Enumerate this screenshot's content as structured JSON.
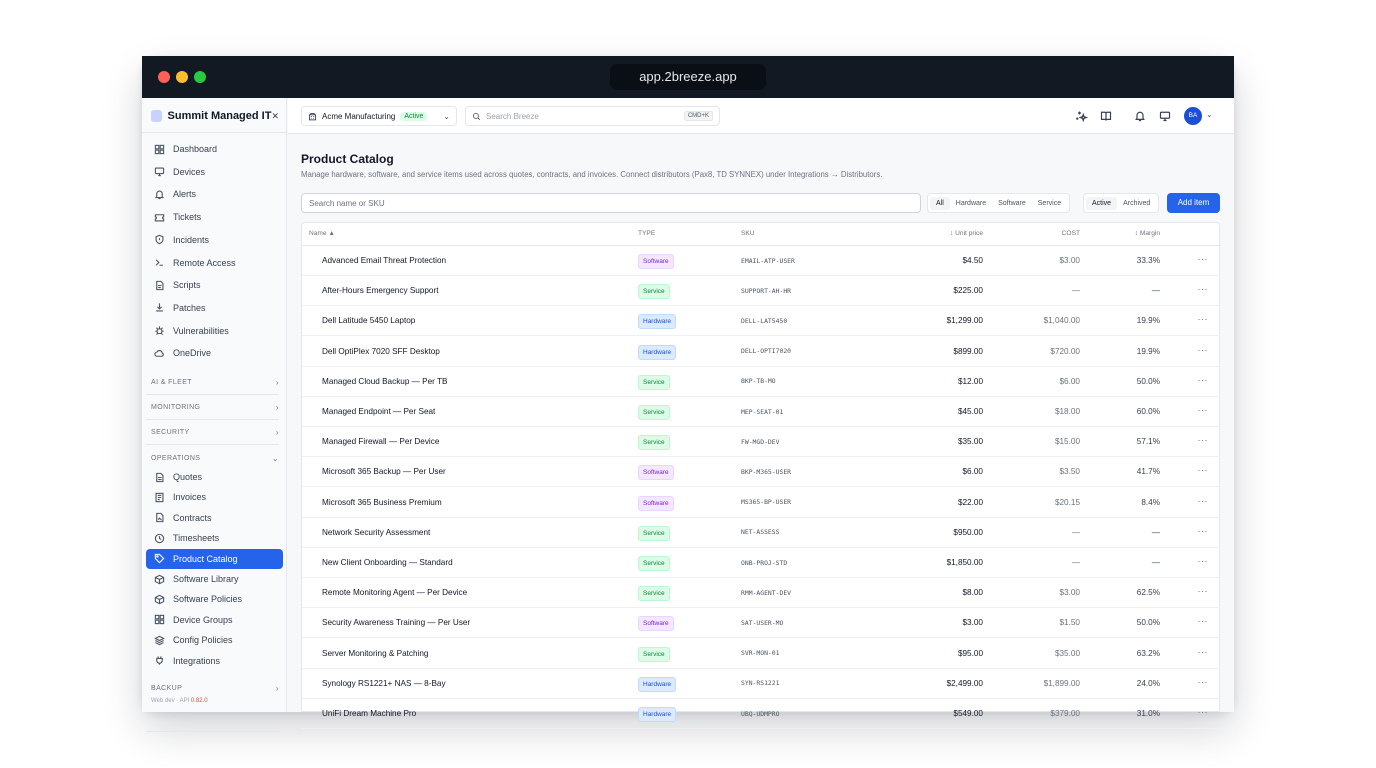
{
  "browser": {
    "url": "app.2breeze.app"
  },
  "sidebar": {
    "org_name": "Summit Managed IT",
    "items": [
      {
        "label": "Dashboard",
        "icon": "dashboard-icon"
      },
      {
        "label": "Devices",
        "icon": "monitor-icon"
      },
      {
        "label": "Alerts",
        "icon": "bell-icon"
      },
      {
        "label": "Tickets",
        "icon": "ticket-icon"
      },
      {
        "label": "Incidents",
        "icon": "shield-icon"
      },
      {
        "label": "Remote Access",
        "icon": "terminal-icon"
      },
      {
        "label": "Scripts",
        "icon": "script-icon"
      },
      {
        "label": "Patches",
        "icon": "download-icon"
      },
      {
        "label": "Vulnerabilities",
        "icon": "bug-icon"
      },
      {
        "label": "OneDrive",
        "icon": "cloud-icon"
      }
    ],
    "sections": {
      "ai_fleet": "AI & FLEET",
      "monitoring": "MONITORING",
      "security": "SECURITY",
      "operations": "OPERATIONS",
      "backup": "BACKUP"
    },
    "ops_items": [
      {
        "label": "Quotes",
        "icon": "document-icon"
      },
      {
        "label": "Invoices",
        "icon": "invoice-icon"
      },
      {
        "label": "Contracts",
        "icon": "contract-icon"
      },
      {
        "label": "Timesheets",
        "icon": "clock-icon"
      },
      {
        "label": "Product Catalog",
        "icon": "tag-icon",
        "active": true
      },
      {
        "label": "Software Library",
        "icon": "package-icon"
      },
      {
        "label": "Software Policies",
        "icon": "package-icon"
      },
      {
        "label": "Device Groups",
        "icon": "grid-icon"
      },
      {
        "label": "Config Policies",
        "icon": "layers-icon"
      },
      {
        "label": "Integrations",
        "icon": "plug-icon"
      }
    ],
    "footer": {
      "prefix": "Web dev · API ",
      "version": "0.82.0"
    }
  },
  "topbar": {
    "tenant_name": "Acme Manufacturing",
    "tenant_status": "Active",
    "search_placeholder": "Search Breeze",
    "search_shortcut": "CMD+K",
    "avatar_initials": "BA"
  },
  "main": {
    "title": "Product Catalog",
    "description": "Manage hardware, software, and service items used across quotes, contracts, and invoices. Connect distributors (Pax8, TD SYNNEX) under Integrations → Distributors.",
    "filter_placeholder": "Search name or SKU",
    "type_filters": [
      "All",
      "Hardware",
      "Software",
      "Service"
    ],
    "type_selected": "All",
    "status_filters": [
      "Active",
      "Archived"
    ],
    "status_selected": "Active",
    "add_button": "Add item",
    "columns": {
      "name": "Name ▲",
      "type": "TYPE",
      "sku": "SKU",
      "unit_price": "↕ Unit price",
      "cost": "COST",
      "margin": "↕ Margin"
    },
    "rows": [
      {
        "name": "Advanced Email Threat Protection",
        "type": "Software",
        "sku": "EMAIL-ATP-USER",
        "price": "$4.50",
        "cost": "$3.00",
        "margin": "33.3%"
      },
      {
        "name": "After-Hours Emergency Support",
        "type": "Service",
        "sku": "SUPPORT-AH-HR",
        "price": "$225.00",
        "cost": "—",
        "margin": "—"
      },
      {
        "name": "Dell Latitude 5450 Laptop",
        "type": "Hardware",
        "sku": "DELL-LAT5450",
        "price": "$1,299.00",
        "cost": "$1,040.00",
        "margin": "19.9%"
      },
      {
        "name": "Dell OptiPlex 7020 SFF Desktop",
        "type": "Hardware",
        "sku": "DELL-OPTI7020",
        "price": "$899.00",
        "cost": "$720.00",
        "margin": "19.9%"
      },
      {
        "name": "Managed Cloud Backup — Per TB",
        "type": "Service",
        "sku": "BKP-TB-MO",
        "price": "$12.00",
        "cost": "$6.00",
        "margin": "50.0%"
      },
      {
        "name": "Managed Endpoint — Per Seat",
        "type": "Service",
        "sku": "MEP-SEAT-01",
        "price": "$45.00",
        "cost": "$18.00",
        "margin": "60.0%"
      },
      {
        "name": "Managed Firewall — Per Device",
        "type": "Service",
        "sku": "FW-MGD-DEV",
        "price": "$35.00",
        "cost": "$15.00",
        "margin": "57.1%"
      },
      {
        "name": "Microsoft 365 Backup — Per User",
        "type": "Software",
        "sku": "BKP-M365-USER",
        "price": "$6.00",
        "cost": "$3.50",
        "margin": "41.7%"
      },
      {
        "name": "Microsoft 365 Business Premium",
        "type": "Software",
        "sku": "MS365-BP-USER",
        "price": "$22.00",
        "cost": "$20.15",
        "margin": "8.4%"
      },
      {
        "name": "Network Security Assessment",
        "type": "Service",
        "sku": "NET-ASSESS",
        "price": "$950.00",
        "cost": "—",
        "margin": "—"
      },
      {
        "name": "New Client Onboarding — Standard",
        "type": "Service",
        "sku": "ONB-PROJ-STD",
        "price": "$1,850.00",
        "cost": "—",
        "margin": "—"
      },
      {
        "name": "Remote Monitoring Agent — Per Device",
        "type": "Service",
        "sku": "RMM-AGENT-DEV",
        "price": "$8.00",
        "cost": "$3.00",
        "margin": "62.5%"
      },
      {
        "name": "Security Awareness Training — Per User",
        "type": "Software",
        "sku": "SAT-USER-MO",
        "price": "$3.00",
        "cost": "$1.50",
        "margin": "50.0%"
      },
      {
        "name": "Server Monitoring & Patching",
        "type": "Service",
        "sku": "SVR-MON-01",
        "price": "$95.00",
        "cost": "$35.00",
        "margin": "63.2%"
      },
      {
        "name": "Synology RS1221+ NAS — 8-Bay",
        "type": "Hardware",
        "sku": "SYN-RS1221",
        "price": "$2,499.00",
        "cost": "$1,899.00",
        "margin": "24.0%"
      },
      {
        "name": "UniFi Dream Machine Pro",
        "type": "Hardware",
        "sku": "UBQ-UDMPRO",
        "price": "$549.00",
        "cost": "$379.00",
        "margin": "31.0%"
      }
    ],
    "row_menu": "···"
  }
}
